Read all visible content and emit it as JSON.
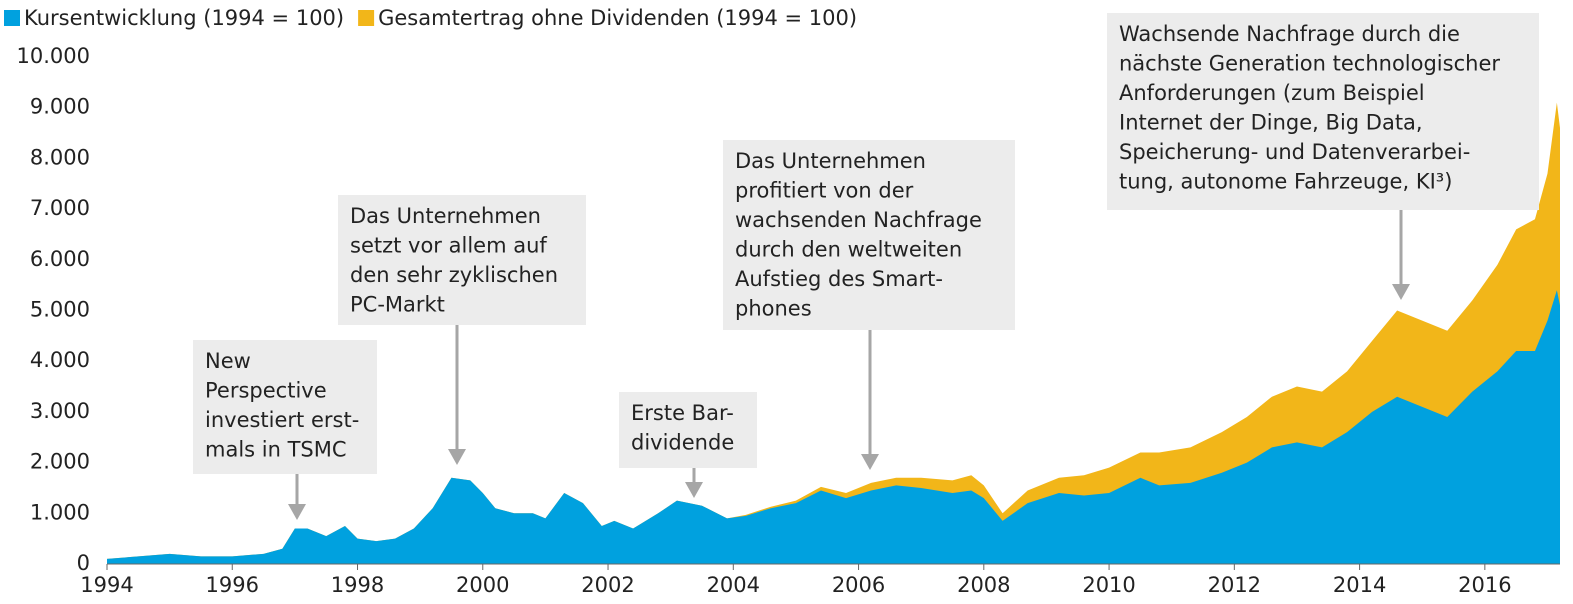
{
  "chart_data": {
    "type": "area",
    "legend": "top-left",
    "x": [
      1994.0,
      1994.5,
      1995.0,
      1995.5,
      1996.0,
      1996.5,
      1996.8,
      1997.0,
      1997.2,
      1997.5,
      1997.8,
      1998.0,
      1998.3,
      1998.6,
      1998.9,
      1999.2,
      1999.5,
      1999.8,
      2000.0,
      2000.2,
      2000.5,
      2000.8,
      2001.0,
      2001.3,
      2001.6,
      2001.9,
      2002.1,
      2002.4,
      2002.8,
      2003.1,
      2003.5,
      2003.9,
      2004.2,
      2004.6,
      2005.0,
      2005.4,
      2005.8,
      2006.2,
      2006.6,
      2007.0,
      2007.5,
      2007.8,
      2008.0,
      2008.3,
      2008.7,
      2009.2,
      2009.6,
      2010.0,
      2010.5,
      2010.8,
      2011.3,
      2011.8,
      2012.2,
      2012.6,
      2013.0,
      2013.4,
      2013.8,
      2014.2,
      2014.6,
      2015.0,
      2015.4,
      2015.8,
      2016.2,
      2016.5,
      2016.8,
      2017.0,
      2017.15,
      2017.2
    ],
    "series": [
      {
        "name": "Gesamtertrag ohne Dividenden (1994 = 100)",
        "color": "#f2b619",
        "values": [
          100,
          150,
          200,
          150,
          150,
          200,
          300,
          700,
          700,
          550,
          750,
          500,
          450,
          500,
          700,
          1100,
          1700,
          1650,
          1400,
          1100,
          1000,
          1000,
          900,
          1400,
          1200,
          750,
          850,
          700,
          1000,
          1250,
          1150,
          900,
          970,
          1130,
          1250,
          1520,
          1400,
          1600,
          1700,
          1700,
          1650,
          1750,
          1550,
          1000,
          1450,
          1700,
          1750,
          1900,
          2200,
          2200,
          2300,
          2600,
          2900,
          3300,
          3500,
          3400,
          3800,
          4400,
          5000,
          4800,
          4600,
          5200,
          5900,
          6600,
          6800,
          7700,
          9100,
          8600
        ]
      },
      {
        "name": "Kursentwicklung (1994 = 100)",
        "color": "#00a1df",
        "values": [
          100,
          150,
          200,
          150,
          150,
          200,
          300,
          700,
          700,
          550,
          750,
          500,
          450,
          500,
          700,
          1100,
          1700,
          1650,
          1400,
          1100,
          1000,
          1000,
          900,
          1400,
          1200,
          750,
          850,
          700,
          1000,
          1250,
          1150,
          900,
          950,
          1100,
          1200,
          1450,
          1300,
          1450,
          1550,
          1500,
          1400,
          1450,
          1300,
          850,
          1200,
          1400,
          1350,
          1400,
          1700,
          1550,
          1600,
          1800,
          2000,
          2300,
          2400,
          2300,
          2600,
          3000,
          3300,
          3100,
          2900,
          3400,
          3800,
          4200,
          4200,
          4800,
          5400,
          5100
        ]
      }
    ],
    "xlim": [
      1994,
      2017.2
    ],
    "xticks": [
      1994,
      1996,
      1998,
      2000,
      2002,
      2004,
      2006,
      2008,
      2010,
      2012,
      2014,
      2016
    ],
    "ylim": [
      0,
      10000
    ],
    "yticks": [
      0,
      {
        "value": 1000,
        "label": "1.000"
      },
      {
        "value": 2000,
        "label": "2.000"
      },
      {
        "value": 3000,
        "label": "3.000"
      },
      {
        "value": 4000,
        "label": "4.000"
      },
      {
        "value": 5000,
        "label": "5.000"
      },
      {
        "value": 6000,
        "label": "6.000"
      },
      {
        "value": 7000,
        "label": "7.000"
      },
      {
        "value": 8000,
        "label": "8.000"
      },
      {
        "value": 9000,
        "label": "9.000"
      },
      {
        "value": 10000,
        "label": "10.000"
      }
    ],
    "annotations": [
      [
        "New",
        "Perspective",
        "investiert erst-",
        "mals in TSMC"
      ],
      [
        "Das Unternehmen",
        "setzt vor allem auf",
        "den sehr zyklischen",
        "PC-Markt"
      ],
      [
        "Erste Bar-",
        "dividende"
      ],
      [
        "Das Unternehmen",
        "profitiert von der",
        "wachsenden Nachfrage",
        "durch den weltweiten",
        "Aufstieg des Smart-",
        "phones"
      ],
      [
        "Wachsende Nachfrage durch die",
        "nächste Generation technologischer",
        "Anforderungen (zum Beispiel",
        "Internet der Dinge, Big Data,",
        "Speicherung- und Datenverarbei-",
        "tung, autonome Fahrzeuge, KI³)"
      ]
    ]
  }
}
